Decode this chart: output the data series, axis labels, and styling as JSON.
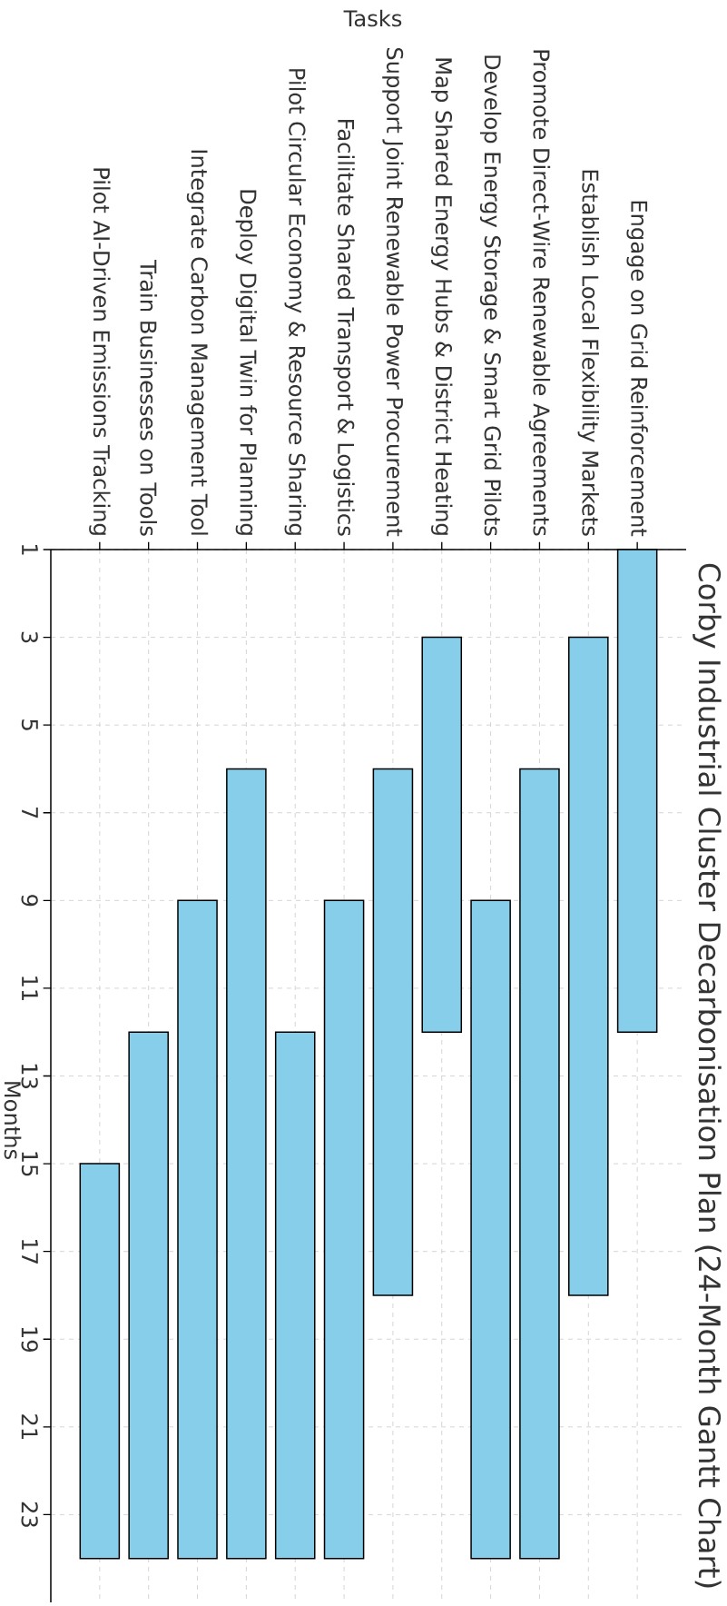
{
  "chart_data": {
    "type": "bar",
    "title": "Corby Industrial Cluster Decarbonisation Plan (24-Month Gantt Chart)",
    "xlabel": "Tasks",
    "ylabel": "Months",
    "categories": [
      "Pilot AI-Driven Emissions Tracking",
      "Train Businesses on Tools",
      "Integrate Carbon Management Tool",
      "Deploy Digital Twin for Planning",
      "Pilot Circular Economy & Resource Sharing",
      "Facilitate Shared Transport & Logistics",
      "Support Joint Renewable Power Procurement",
      "Map Shared Energy Hubs & District Heating",
      "Develop Energy Storage & Smart Grid Pilots",
      "Promote Direct-Wire Renewable Agreements",
      "Establish Local Flexibility Markets",
      "Engage on Grid Reinforcement"
    ],
    "base": [
      15,
      12,
      9,
      6,
      12,
      9,
      6,
      3,
      9,
      6,
      3,
      1
    ],
    "values": [
      9,
      12,
      15,
      18,
      12,
      15,
      12,
      9,
      15,
      18,
      15,
      11
    ],
    "color": "#87ceeb",
    "ylim": [
      25,
      1
    ],
    "yticks": [
      1,
      3,
      5,
      7,
      9,
      11,
      13,
      15,
      17,
      19,
      21,
      23
    ],
    "grid": true
  }
}
